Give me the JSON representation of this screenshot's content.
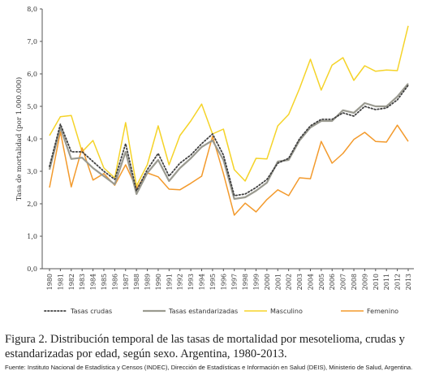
{
  "chart_data": {
    "type": "line",
    "ylabel": "Tasa de mortalidad (por 1.000.000)",
    "xlabel": "",
    "ylim": [
      0,
      8
    ],
    "y_ticks": [
      "0,0",
      "1,0",
      "2,0",
      "3,0",
      "4,0",
      "5,0",
      "6,0",
      "7,0",
      "8,0"
    ],
    "grid": false,
    "legend_position": "bottom",
    "x": [
      "1980",
      "1981",
      "1982",
      "1983",
      "1984",
      "1985",
      "1986",
      "1987",
      "1988",
      "1989",
      "1990",
      "1991",
      "1992",
      "1993",
      "1994",
      "1995",
      "1996",
      "1997",
      "1998",
      "1999",
      "2000",
      "2001",
      "2002",
      "2003",
      "2004",
      "2005",
      "2006",
      "2007",
      "2008",
      "2009",
      "2010",
      "2011",
      "2012",
      "2013"
    ],
    "series": [
      {
        "name": "Tasas crudas",
        "color": "#404040",
        "style": "dotted",
        "values": [
          3.15,
          4.45,
          3.6,
          3.6,
          3.3,
          3.0,
          2.75,
          3.85,
          2.4,
          3.05,
          3.55,
          2.85,
          3.25,
          3.5,
          3.85,
          4.15,
          3.5,
          2.25,
          2.3,
          2.5,
          2.75,
          3.25,
          3.4,
          4.0,
          4.4,
          4.6,
          4.6,
          4.8,
          4.7,
          5.0,
          4.9,
          4.95,
          5.2,
          5.65
        ]
      },
      {
        "name": "Tasas estandarizadas",
        "color": "#9a9a90",
        "style": "solid",
        "values": [
          3.05,
          4.35,
          3.38,
          3.42,
          3.1,
          2.85,
          2.6,
          3.6,
          2.3,
          2.95,
          3.35,
          2.7,
          3.1,
          3.4,
          3.75,
          3.95,
          3.35,
          2.15,
          2.2,
          2.4,
          2.65,
          3.3,
          3.35,
          3.95,
          4.35,
          4.55,
          4.55,
          4.88,
          4.8,
          5.1,
          5.0,
          5.0,
          5.3,
          5.7
        ]
      },
      {
        "name": "Masculino",
        "color": "#f5d328",
        "style": "solid",
        "values": [
          4.1,
          4.68,
          4.72,
          3.6,
          3.95,
          3.1,
          2.8,
          4.5,
          2.55,
          3.2,
          4.4,
          3.2,
          4.1,
          4.55,
          5.07,
          4.15,
          4.3,
          3.05,
          2.7,
          3.4,
          3.38,
          4.4,
          4.75,
          5.55,
          6.45,
          5.5,
          6.27,
          6.5,
          5.8,
          6.25,
          6.08,
          6.12,
          6.1,
          7.48
        ]
      },
      {
        "name": "Femenino",
        "color": "#f39a2c",
        "style": "solid",
        "values": [
          2.5,
          4.22,
          2.52,
          3.72,
          2.73,
          2.93,
          2.57,
          3.2,
          2.48,
          2.95,
          2.83,
          2.45,
          2.43,
          2.63,
          2.85,
          4.08,
          2.93,
          1.65,
          2.02,
          1.75,
          2.13,
          2.43,
          2.25,
          2.8,
          2.77,
          3.92,
          3.25,
          3.55,
          3.98,
          4.2,
          3.92,
          3.9,
          4.42,
          3.92
        ]
      }
    ]
  },
  "caption": "Figura 2. Distribución temporal de las tasas de mortalidad por mesotelioma, crudas y estandarizadas por edad, según sexo. Argentina, 1980-2013.",
  "source": "Fuente: Instituto Nacional de Estadística y Censos (INDEC), Dirección de Estadísticas e Información en Salud (DEIS), Ministerio de Salud, Argentina."
}
